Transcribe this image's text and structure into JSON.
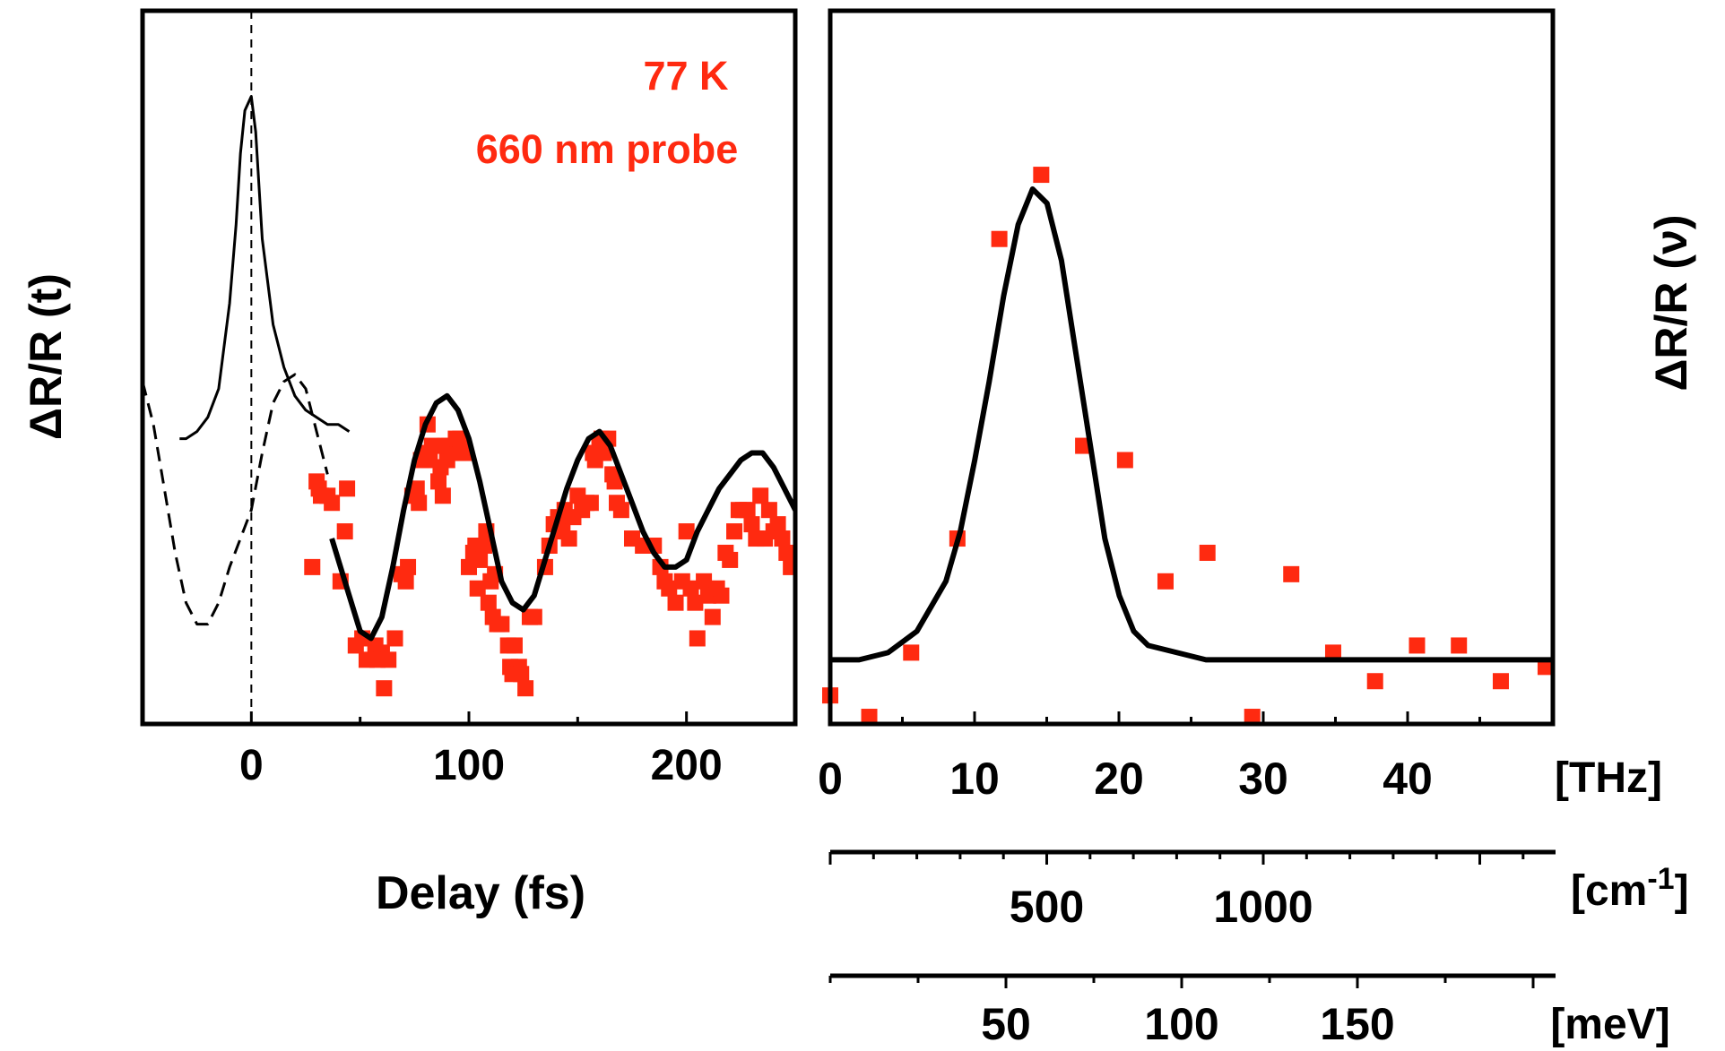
{
  "chart_data": [
    {
      "type": "scatter",
      "title": "",
      "xlabel": "Delay (fs)",
      "ylabel": "ΔR/R (t)",
      "xlim": [
        -50,
        250
      ],
      "ylim": [
        0,
        1
      ],
      "y_units": "arbitrary",
      "xticks": [
        0,
        100,
        200
      ],
      "annotations": [
        "77 K",
        "660 nm probe"
      ],
      "zero_line_x": 0,
      "series": [
        {
          "style": "markers",
          "color": "#ff2a10",
          "points": [
            [
              28,
              0.22
            ],
            [
              30,
              0.34
            ],
            [
              31,
              0.33
            ],
            [
              32,
              0.32
            ],
            [
              35,
              0.32
            ],
            [
              37,
              0.31
            ],
            [
              41,
              0.2
            ],
            [
              43,
              0.27
            ],
            [
              44,
              0.33
            ],
            [
              48,
              0.11
            ],
            [
              51,
              0.12
            ],
            [
              53,
              0.09
            ],
            [
              57,
              0.11
            ],
            [
              58,
              0.09
            ],
            [
              60,
              0.1
            ],
            [
              61,
              0.05
            ],
            [
              63,
              0.09
            ],
            [
              66,
              0.12
            ],
            [
              69,
              0.21
            ],
            [
              71,
              0.2
            ],
            [
              72,
              0.22
            ],
            [
              74,
              0.32
            ],
            [
              76,
              0.33
            ],
            [
              77,
              0.31
            ],
            [
              78,
              0.37
            ],
            [
              80,
              0.38
            ],
            [
              81,
              0.42
            ],
            [
              82,
              0.37
            ],
            [
              83,
              0.39
            ],
            [
              86,
              0.34
            ],
            [
              87,
              0.36
            ],
            [
              88,
              0.32
            ],
            [
              89,
              0.39
            ],
            [
              90,
              0.37
            ],
            [
              91,
              0.39
            ],
            [
              92,
              0.38
            ],
            [
              94,
              0.4
            ],
            [
              95,
              0.38
            ],
            [
              96,
              0.4
            ],
            [
              98,
              0.38
            ],
            [
              100,
              0.22
            ],
            [
              102,
              0.24
            ],
            [
              103,
              0.25
            ],
            [
              104,
              0.19
            ],
            [
              105,
              0.23
            ],
            [
              107,
              0.25
            ],
            [
              108,
              0.27
            ],
            [
              109,
              0.17
            ],
            [
              110,
              0.2
            ],
            [
              111,
              0.15
            ],
            [
              112,
              0.21
            ],
            [
              113,
              0.14
            ],
            [
              115,
              0.14
            ],
            [
              118,
              0.11
            ],
            [
              119,
              0.08
            ],
            [
              120,
              0.07
            ],
            [
              121,
              0.11
            ],
            [
              123,
              0.08
            ],
            [
              124,
              0.07
            ],
            [
              126,
              0.05
            ],
            [
              128,
              0.15
            ],
            [
              130,
              0.15
            ],
            [
              135,
              0.22
            ],
            [
              137,
              0.25
            ],
            [
              139,
              0.28
            ],
            [
              141,
              0.29
            ],
            [
              143,
              0.27
            ],
            [
              144,
              0.3
            ],
            [
              146,
              0.26
            ],
            [
              148,
              0.29
            ],
            [
              150,
              0.32
            ],
            [
              152,
              0.3
            ],
            [
              154,
              0.31
            ],
            [
              156,
              0.31
            ],
            [
              157,
              0.38
            ],
            [
              158,
              0.37
            ],
            [
              159,
              0.38
            ],
            [
              160,
              0.39
            ],
            [
              161,
              0.4
            ],
            [
              162,
              0.38
            ],
            [
              164,
              0.4
            ],
            [
              166,
              0.35
            ],
            [
              167,
              0.34
            ],
            [
              168,
              0.31
            ],
            [
              170,
              0.3
            ],
            [
              175,
              0.26
            ],
            [
              180,
              0.25
            ],
            [
              185,
              0.25
            ],
            [
              188,
              0.22
            ],
            [
              190,
              0.2
            ],
            [
              192,
              0.19
            ],
            [
              195,
              0.17
            ],
            [
              198,
              0.2
            ],
            [
              200,
              0.27
            ],
            [
              202,
              0.19
            ],
            [
              204,
              0.17
            ],
            [
              205,
              0.12
            ],
            [
              208,
              0.2
            ],
            [
              210,
              0.18
            ],
            [
              212,
              0.15
            ],
            [
              214,
              0.19
            ],
            [
              216,
              0.18
            ],
            [
              218,
              0.24
            ],
            [
              220,
              0.23
            ],
            [
              222,
              0.27
            ],
            [
              224,
              0.3
            ],
            [
              226,
              0.3
            ],
            [
              228,
              0.3
            ],
            [
              230,
              0.28
            ],
            [
              232,
              0.26
            ],
            [
              234,
              0.32
            ],
            [
              236,
              0.26
            ],
            [
              238,
              0.3
            ],
            [
              240,
              0.27
            ],
            [
              242,
              0.28
            ],
            [
              244,
              0.26
            ],
            [
              246,
              0.24
            ],
            [
              248,
              0.22
            ]
          ]
        },
        {
          "style": "thick-solid",
          "color": "#000000",
          "points": [
            [
              37,
              0.26
            ],
            [
              41,
              0.22
            ],
            [
              45,
              0.18
            ],
            [
              50,
              0.13
            ],
            [
              55,
              0.12
            ],
            [
              60,
              0.15
            ],
            [
              65,
              0.22
            ],
            [
              70,
              0.3
            ],
            [
              75,
              0.37
            ],
            [
              80,
              0.42
            ],
            [
              85,
              0.45
            ],
            [
              90,
              0.46
            ],
            [
              95,
              0.44
            ],
            [
              100,
              0.4
            ],
            [
              105,
              0.34
            ],
            [
              110,
              0.27
            ],
            [
              115,
              0.2
            ],
            [
              120,
              0.17
            ],
            [
              125,
              0.16
            ],
            [
              130,
              0.18
            ],
            [
              135,
              0.23
            ],
            [
              140,
              0.28
            ],
            [
              145,
              0.33
            ],
            [
              150,
              0.37
            ],
            [
              155,
              0.4
            ],
            [
              160,
              0.41
            ],
            [
              165,
              0.39
            ],
            [
              170,
              0.35
            ],
            [
              175,
              0.31
            ],
            [
              180,
              0.27
            ],
            [
              185,
              0.24
            ],
            [
              190,
              0.22
            ],
            [
              195,
              0.22
            ],
            [
              200,
              0.23
            ],
            [
              205,
              0.27
            ],
            [
              210,
              0.3
            ],
            [
              215,
              0.33
            ],
            [
              220,
              0.35
            ],
            [
              225,
              0.37
            ],
            [
              230,
              0.38
            ],
            [
              235,
              0.38
            ],
            [
              240,
              0.36
            ],
            [
              245,
              0.33
            ],
            [
              250,
              0.3
            ]
          ]
        },
        {
          "style": "dashed",
          "color": "#000000",
          "points": [
            [
              -50,
              0.48
            ],
            [
              -45,
              0.42
            ],
            [
              -40,
              0.33
            ],
            [
              -35,
              0.24
            ],
            [
              -30,
              0.17
            ],
            [
              -25,
              0.14
            ],
            [
              -20,
              0.14
            ],
            [
              -15,
              0.17
            ],
            [
              -10,
              0.22
            ],
            [
              -5,
              0.26
            ],
            [
              0,
              0.3
            ],
            [
              5,
              0.38
            ],
            [
              10,
              0.45
            ],
            [
              15,
              0.48
            ],
            [
              20,
              0.49
            ],
            [
              25,
              0.47
            ],
            [
              30,
              0.41
            ],
            [
              35,
              0.35
            ]
          ]
        },
        {
          "style": "thin-solid",
          "color": "#000000",
          "points": [
            [
              -33,
              0.4
            ],
            [
              -30,
              0.4
            ],
            [
              -25,
              0.41
            ],
            [
              -20,
              0.43
            ],
            [
              -15,
              0.47
            ],
            [
              -10,
              0.59
            ],
            [
              -7,
              0.7
            ],
            [
              -5,
              0.8
            ],
            [
              -3,
              0.86
            ],
            [
              0,
              0.88
            ],
            [
              2,
              0.83
            ],
            [
              5,
              0.68
            ],
            [
              10,
              0.56
            ],
            [
              15,
              0.5
            ],
            [
              20,
              0.46
            ],
            [
              25,
              0.44
            ],
            [
              30,
              0.43
            ],
            [
              35,
              0.42
            ],
            [
              40,
              0.42
            ],
            [
              45,
              0.41
            ]
          ]
        }
      ]
    },
    {
      "type": "scatter",
      "title": "",
      "xlabel": "",
      "ylabel": "ΔR/R (ν)",
      "xlim": [
        0,
        50
      ],
      "ylim": [
        0,
        1
      ],
      "y_units": "arbitrary",
      "axes": [
        {
          "unit": "[THz]",
          "ticks": [
            "0",
            "10",
            "20",
            "30",
            "40"
          ]
        },
        {
          "unit": "[cm",
          "unit_sup": "-1",
          "unit_close": "]",
          "ticks": [
            "500",
            "1000"
          ]
        },
        {
          "unit": "[meV]",
          "ticks": [
            "50",
            "100",
            "150"
          ]
        }
      ],
      "series": [
        {
          "style": "markers",
          "color": "#ff2a10",
          "points": [
            [
              0,
              0.04
            ],
            [
              2.7,
              0.01
            ],
            [
              5.6,
              0.1
            ],
            [
              8.8,
              0.26
            ],
            [
              11.7,
              0.68
            ],
            [
              14.6,
              0.77
            ],
            [
              17.5,
              0.39
            ],
            [
              20.4,
              0.37
            ],
            [
              23.2,
              0.2
            ],
            [
              26.1,
              0.24
            ],
            [
              29.2,
              0.01
            ],
            [
              31.9,
              0.21
            ],
            [
              34.8,
              0.1
            ],
            [
              37.7,
              0.06
            ],
            [
              40.6,
              0.11
            ],
            [
              43.5,
              0.11
            ],
            [
              46.4,
              0.06
            ],
            [
              49.5,
              0.08
            ]
          ]
        },
        {
          "style": "thick-solid",
          "color": "#000000",
          "points": [
            [
              0,
              0.09
            ],
            [
              2,
              0.09
            ],
            [
              4,
              0.1
            ],
            [
              6,
              0.13
            ],
            [
              8,
              0.2
            ],
            [
              9,
              0.27
            ],
            [
              10,
              0.37
            ],
            [
              11,
              0.48
            ],
            [
              12,
              0.6
            ],
            [
              13,
              0.7
            ],
            [
              14,
              0.75
            ],
            [
              15,
              0.73
            ],
            [
              16,
              0.65
            ],
            [
              17,
              0.52
            ],
            [
              18,
              0.39
            ],
            [
              19,
              0.26
            ],
            [
              20,
              0.18
            ],
            [
              21,
              0.13
            ],
            [
              22,
              0.11
            ],
            [
              24,
              0.1
            ],
            [
              26,
              0.09
            ],
            [
              30,
              0.09
            ],
            [
              40,
              0.09
            ],
            [
              50,
              0.09
            ]
          ]
        }
      ]
    }
  ]
}
